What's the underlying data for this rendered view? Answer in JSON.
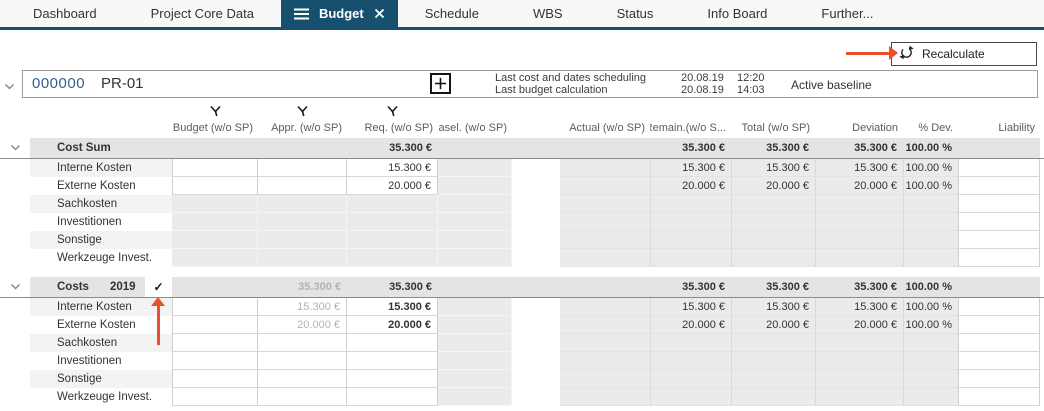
{
  "tabs": [
    {
      "label": "Dashboard"
    },
    {
      "label": "Project Core Data"
    },
    {
      "label": "Budget",
      "active": true
    },
    {
      "label": "Schedule"
    },
    {
      "label": "WBS"
    },
    {
      "label": "Status"
    },
    {
      "label": "Info Board"
    },
    {
      "label": "Further..."
    }
  ],
  "toolbar": {
    "recalculate_label": "Recalculate"
  },
  "project": {
    "number": "000000",
    "name": "PR-01",
    "info": [
      {
        "label": "Last cost and dates scheduling",
        "date": "20.08.19",
        "time": "12:20"
      },
      {
        "label": "Last budget calculation",
        "date": "20.08.19",
        "time": "14:03"
      }
    ],
    "baseline_label": "Active baseline"
  },
  "columns": [
    {
      "key": "budget",
      "label": "Budget (w/o SP)",
      "filter": true
    },
    {
      "key": "appr",
      "label": "Appr. (w/o SP)",
      "filter": true
    },
    {
      "key": "req",
      "label": "Req. (w/o SP)",
      "filter": true
    },
    {
      "key": "basel",
      "label": "Basel. (w/o SP)",
      "filter": false
    },
    {
      "key": "actual",
      "label": "Actual (w/o SP)",
      "filter": false
    },
    {
      "key": "remain",
      "label": "Remain.(w/o S...",
      "filter": false
    },
    {
      "key": "total",
      "label": "Total (w/o SP)",
      "filter": false
    },
    {
      "key": "deviation",
      "label": "Deviation",
      "filter": false
    },
    {
      "key": "pdev",
      "label": "% Dev.",
      "filter": false
    },
    {
      "key": "liability",
      "label": "Liability",
      "filter": false
    }
  ],
  "sections": [
    {
      "title": "Cost Sum",
      "year": "",
      "checked": false,
      "sum": {
        "req": "35.300 €",
        "remain": "35.300 €",
        "total": "35.300 €",
        "deviation": "35.300 €",
        "pdev": "100.00 %"
      },
      "rows": [
        {
          "label": "Interne Kosten",
          "req": "15.300 €",
          "remain": "15.300 €",
          "total": "15.300 €",
          "deviation": "15.300 €",
          "pdev": "100.00 %"
        },
        {
          "label": "Externe Kosten",
          "req": "20.000 €",
          "remain": "20.000 €",
          "total": "20.000 €",
          "deviation": "20.000 €",
          "pdev": "100.00 %"
        },
        {
          "label": "Sachkosten"
        },
        {
          "label": "Investitionen"
        },
        {
          "label": "Sonstige"
        },
        {
          "label": "Werkzeuge Invest."
        }
      ]
    },
    {
      "title": "Costs",
      "year": "2019",
      "checked": true,
      "sum": {
        "appr": "35.300 €",
        "req": "35.300 €",
        "remain": "35.300 €",
        "total": "35.300 €",
        "deviation": "35.300 €",
        "pdev": "100.00 %"
      },
      "rows": [
        {
          "label": "Interne Kosten",
          "appr": "15.300 €",
          "req": "15.300 €",
          "remain": "15.300 €",
          "total": "15.300 €",
          "deviation": "15.300 €",
          "pdev": "100.00 %"
        },
        {
          "label": "Externe Kosten",
          "appr": "20.000 €",
          "req": "20.000 €",
          "remain": "20.000 €",
          "total": "20.000 €",
          "deviation": "20.000 €",
          "pdev": "100.00 %"
        },
        {
          "label": "Sachkosten"
        },
        {
          "label": "Investitionen"
        },
        {
          "label": "Sonstige"
        },
        {
          "label": "Werkzeuge Invest."
        }
      ]
    }
  ],
  "annotations": {
    "check_glyph": "✓"
  }
}
